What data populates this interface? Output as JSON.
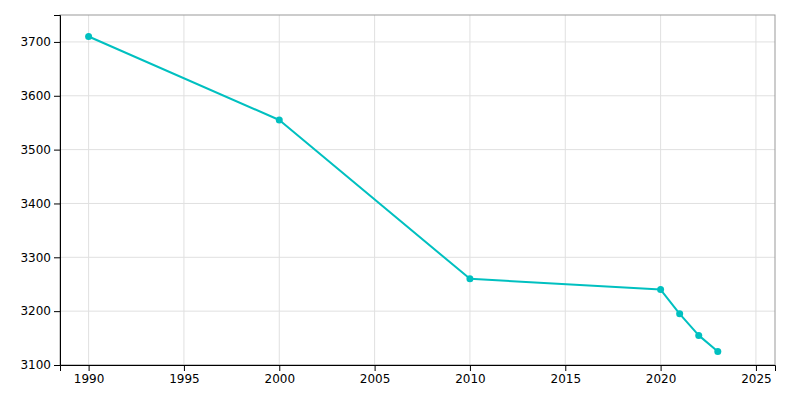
{
  "chart_data": {
    "type": "line",
    "x": [
      1990,
      2000,
      2010,
      2020,
      2021,
      2022,
      2023
    ],
    "values": [
      3710,
      3555,
      3260,
      3240,
      3195,
      3155,
      3125
    ],
    "color": "#00C0C0",
    "marker": "circle",
    "xlim": [
      1988.5,
      2026
    ],
    "ylim": [
      3100,
      3750
    ],
    "xticks": [
      1990,
      1995,
      2000,
      2005,
      2010,
      2015,
      2020,
      2025
    ],
    "yticks": [
      3100,
      3200,
      3300,
      3400,
      3500,
      3600,
      3700
    ],
    "grid": true
  }
}
